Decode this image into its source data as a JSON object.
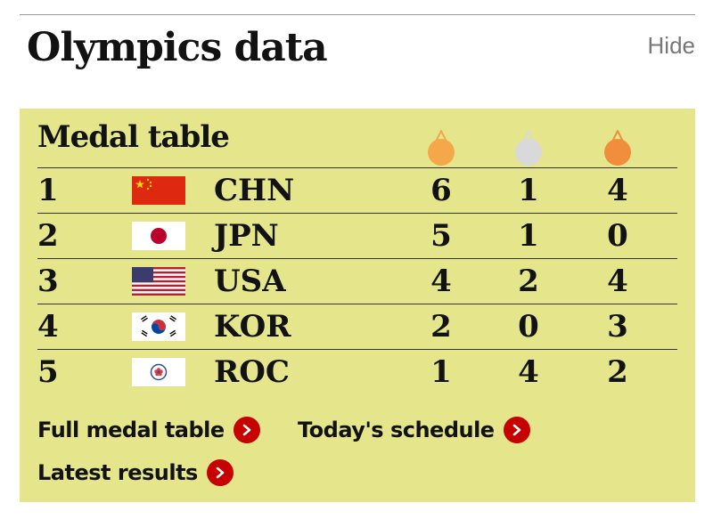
{
  "header": {
    "title": "Olympics data",
    "hide_label": "Hide"
  },
  "medal_table": {
    "heading": "Medal table",
    "medal_icons": [
      {
        "name": "gold",
        "color": "#f5a84a"
      },
      {
        "name": "silver",
        "color": "#d9d9d9"
      },
      {
        "name": "bronze",
        "color": "#f08e3e"
      }
    ],
    "rows": [
      {
        "rank": "1",
        "flag": "china-flag",
        "code": "CHN",
        "gold": "6",
        "silver": "1",
        "bronze": "4"
      },
      {
        "rank": "2",
        "flag": "japan-flag",
        "code": "JPN",
        "gold": "5",
        "silver": "1",
        "bronze": "0"
      },
      {
        "rank": "3",
        "flag": "usa-flag",
        "code": "USA",
        "gold": "4",
        "silver": "2",
        "bronze": "4"
      },
      {
        "rank": "4",
        "flag": "korea-flag",
        "code": "KOR",
        "gold": "2",
        "silver": "0",
        "bronze": "3"
      },
      {
        "rank": "5",
        "flag": "roc-flag",
        "code": "ROC",
        "gold": "1",
        "silver": "4",
        "bronze": "2"
      }
    ]
  },
  "links": {
    "full_medal_table": "Full medal table",
    "todays_schedule": "Today's schedule",
    "latest_results": "Latest results"
  },
  "colors": {
    "panel": "#e5e58c",
    "accent_red": "#c70000",
    "text": "#121212",
    "muted": "#777777"
  }
}
